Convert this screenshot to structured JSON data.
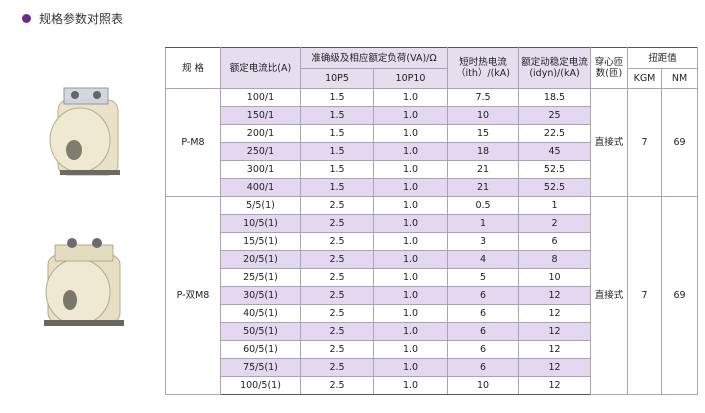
{
  "header": {
    "title": "规格参数对照表"
  },
  "table": {
    "headers": {
      "model": "规 格",
      "ratio": "额定电流比(A)",
      "accuracy": "准确级及相应额定负荷(VA)/Ω",
      "p5": "10P5",
      "p10": "10P10",
      "ith": "短时热电流\n（ith）/(kA)",
      "idyn": "额定动稳定电流\n(idyn)/(kA)",
      "turns": "穿心匝\n数(匝)",
      "torque": "扭距值",
      "kgm": "KGM",
      "nm": "NM"
    },
    "groups": [
      {
        "model": "P-M8",
        "turns": "直接式",
        "kgm": "7",
        "nm": "69",
        "rows": [
          [
            "100/1",
            "1.5",
            "1.0",
            "7.5",
            "18.5"
          ],
          [
            "150/1",
            "1.5",
            "1.0",
            "10",
            "25"
          ],
          [
            "200/1",
            "1.5",
            "1.0",
            "15",
            "22.5"
          ],
          [
            "250/1",
            "1.5",
            "1.0",
            "18",
            "45"
          ],
          [
            "300/1",
            "1.5",
            "1.0",
            "21",
            "52.5"
          ],
          [
            "400/1",
            "1.5",
            "1.0",
            "21",
            "52.5"
          ]
        ]
      },
      {
        "model": "P-双M8",
        "turns": "直接式",
        "kgm": "7",
        "nm": "69",
        "rows": [
          [
            "5/5(1)",
            "2.5",
            "1.0",
            "0.5",
            "1"
          ],
          [
            "10/5(1)",
            "2.5",
            "1.0",
            "1",
            "2"
          ],
          [
            "15/5(1)",
            "2.5",
            "1.0",
            "3",
            "6"
          ],
          [
            "20/5(1)",
            "2.5",
            "1.0",
            "4",
            "8"
          ],
          [
            "25/5(1)",
            "2.5",
            "1.0",
            "5",
            "10"
          ],
          [
            "30/5(1)",
            "2.5",
            "1.0",
            "6",
            "12"
          ],
          [
            "40/5(1)",
            "2.5",
            "1.0",
            "6",
            "12"
          ],
          [
            "50/5(1)",
            "2.5",
            "1.0",
            "6",
            "12"
          ],
          [
            "60/5(1)",
            "2.5",
            "1.0",
            "6",
            "12"
          ],
          [
            "75/5(1)",
            "2.5",
            "1.0",
            "6",
            "12"
          ],
          [
            "100/5(1)",
            "2.5",
            "1.0",
            "10",
            "12"
          ]
        ]
      }
    ]
  }
}
